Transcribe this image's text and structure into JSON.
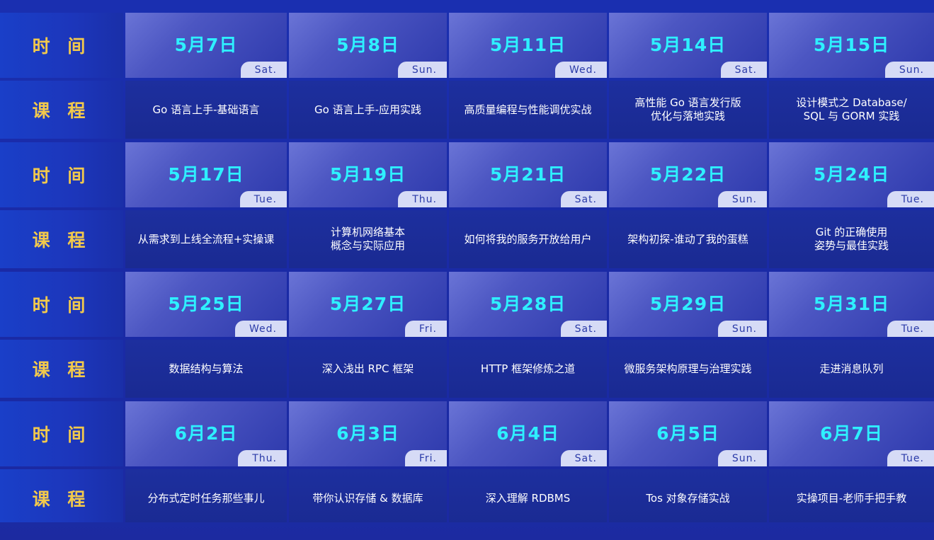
{
  "labels": {
    "time": "时 间",
    "course": "课 程"
  },
  "schedule": [
    {
      "days": [
        {
          "date": "5月7日",
          "dow": "Sat.",
          "course": "Go 语言上手-基础语言"
        },
        {
          "date": "5月8日",
          "dow": "Sun.",
          "course": "Go 语言上手-应用实践"
        },
        {
          "date": "5月11日",
          "dow": "Wed.",
          "course": "高质量编程与性能调优实战"
        },
        {
          "date": "5月14日",
          "dow": "Sat.",
          "course": "高性能 Go 语言发行版\n优化与落地实践"
        },
        {
          "date": "5月15日",
          "dow": "Sun.",
          "course": "设计模式之 Database/\nSQL 与 GORM 实践"
        }
      ]
    },
    {
      "days": [
        {
          "date": "5月17日",
          "dow": "Tue.",
          "course": "从需求到上线全流程+实操课"
        },
        {
          "date": "5月19日",
          "dow": "Thu.",
          "course": "计算机网络基本\n概念与实际应用"
        },
        {
          "date": "5月21日",
          "dow": "Sat.",
          "course": "如何将我的服务开放给用户"
        },
        {
          "date": "5月22日",
          "dow": "Sun.",
          "course": "架构初探-谁动了我的蛋糕"
        },
        {
          "date": "5月24日",
          "dow": "Tue.",
          "course": "Git 的正确使用\n姿势与最佳实践"
        }
      ]
    },
    {
      "days": [
        {
          "date": "5月25日",
          "dow": "Wed.",
          "course": "数据结构与算法"
        },
        {
          "date": "5月27日",
          "dow": "Fri.",
          "course": "深入浅出 RPC 框架"
        },
        {
          "date": "5月28日",
          "dow": "Sat.",
          "course": "HTTP 框架修炼之道"
        },
        {
          "date": "5月29日",
          "dow": "Sun.",
          "course": "微服务架构原理与治理实践"
        },
        {
          "date": "5月31日",
          "dow": "Tue.",
          "course": "走进消息队列"
        }
      ]
    },
    {
      "days": [
        {
          "date": "6月2日",
          "dow": "Thu.",
          "course": "分布式定时任务那些事儿"
        },
        {
          "date": "6月3日",
          "dow": "Fri.",
          "course": "带你认识存储 & 数据库"
        },
        {
          "date": "6月4日",
          "dow": "Sat.",
          "course": "深入理解 RDBMS"
        },
        {
          "date": "6月5日",
          "dow": "Sun.",
          "course": "Tos 对象存储实战"
        },
        {
          "date": "6月7日",
          "dow": "Tue.",
          "course": "实操项目-老师手把手教"
        }
      ]
    }
  ],
  "colors": {
    "background": "#1a2fb0",
    "label_text": "#f2c94c",
    "date_text": "#2ef0ff",
    "course_text": "#ffffff",
    "dow_tag_bg": "#d6dbf6"
  }
}
